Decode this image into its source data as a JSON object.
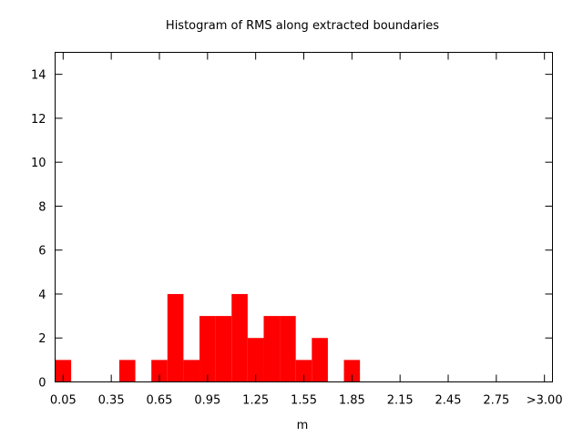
{
  "chart_data": {
    "type": "bar",
    "title": "Histogram of RMS along extracted boundaries",
    "xlabel": "m",
    "ylabel": "",
    "ylim": [
      0,
      15
    ],
    "yticks": [
      0,
      2,
      4,
      6,
      8,
      10,
      12,
      14
    ],
    "xticks": [
      "0.05",
      "0.35",
      "0.65",
      "0.95",
      "1.25",
      "1.55",
      "1.85",
      "2.15",
      "2.45",
      "2.75",
      ">3.00"
    ],
    "bin_width": 0.1,
    "bin_centers": [
      0.05,
      0.15,
      0.25,
      0.35,
      0.45,
      0.55,
      0.65,
      0.75,
      0.85,
      0.95,
      1.05,
      1.15,
      1.25,
      1.35,
      1.45,
      1.55,
      1.65,
      1.75,
      1.85,
      1.95,
      2.05,
      2.15,
      2.25,
      2.35,
      2.45,
      2.55,
      2.65,
      2.75,
      2.85,
      2.95,
      3.05
    ],
    "values": [
      1,
      0,
      0,
      0,
      1,
      0,
      1,
      4,
      1,
      3,
      3,
      4,
      2,
      3,
      3,
      1,
      2,
      0,
      1,
      0,
      0,
      0,
      0,
      0,
      0,
      0,
      0,
      0,
      0,
      0,
      0
    ],
    "bar_color": "#ff0000",
    "grid": false
  }
}
